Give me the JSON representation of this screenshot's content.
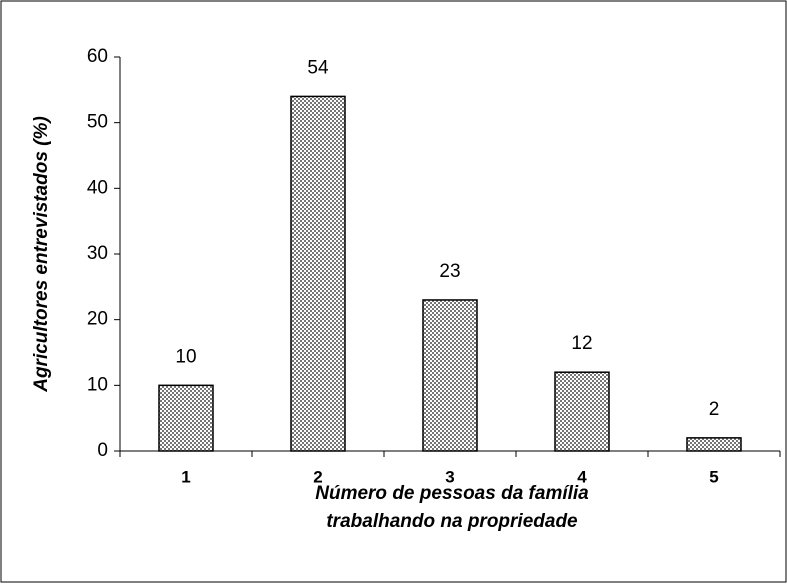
{
  "chart_data": {
    "type": "bar",
    "ylabel": "Agricultores entrevistados (%)",
    "xlabel": [
      "Número de pessoas da família",
      "trabalhando na propriedade"
    ],
    "categories": [
      "1",
      "2",
      "3",
      "4",
      "5"
    ],
    "values": [
      10,
      54,
      23,
      12,
      2
    ],
    "color": "#a8a8a8",
    "ylim": [
      0,
      60
    ],
    "yticks": [
      0,
      10,
      20,
      30,
      40,
      50,
      60
    ],
    "grid": false
  }
}
